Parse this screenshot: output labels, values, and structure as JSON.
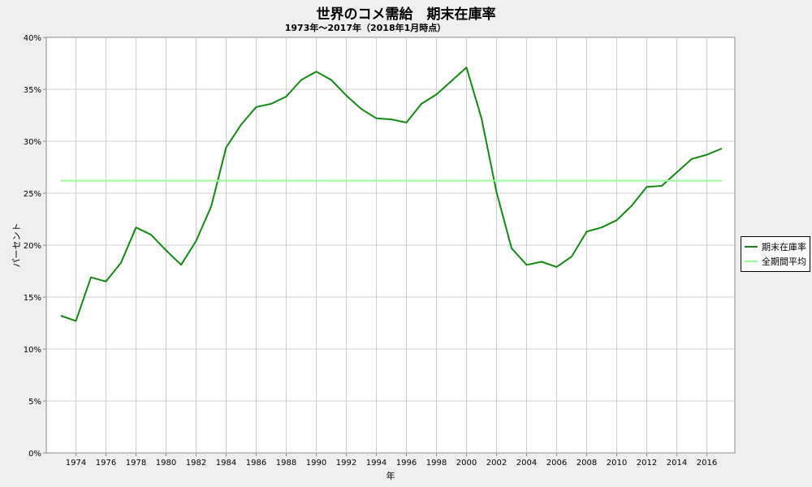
{
  "chart_data": {
    "type": "line",
    "title": "世界のコメ需給　期末在庫率",
    "subtitle": "1973年～2017年（2018年1月時点）",
    "xlabel": "年",
    "ylabel": "パーセント",
    "xlim": [
      1973,
      2017
    ],
    "ylim": [
      0,
      40
    ],
    "y_ticks": [
      "0%",
      "5%",
      "10%",
      "15%",
      "20%",
      "25%",
      "30%",
      "35%",
      "40%"
    ],
    "x_ticks": [
      "1974",
      "1976",
      "1978",
      "1980",
      "1982",
      "1984",
      "1986",
      "1988",
      "1990",
      "1992",
      "1994",
      "1996",
      "1998",
      "2000",
      "2002",
      "2004",
      "2006",
      "2008",
      "2010",
      "2012",
      "2014",
      "2016"
    ],
    "grid": true,
    "legend_position": "right",
    "x": [
      1973,
      1974,
      1975,
      1976,
      1977,
      1978,
      1979,
      1980,
      1981,
      1982,
      1983,
      1984,
      1985,
      1986,
      1987,
      1988,
      1989,
      1990,
      1991,
      1992,
      1993,
      1994,
      1995,
      1996,
      1997,
      1998,
      1999,
      2000,
      2001,
      2002,
      2003,
      2004,
      2005,
      2006,
      2007,
      2008,
      2009,
      2010,
      2011,
      2012,
      2013,
      2014,
      2015,
      2016,
      2017
    ],
    "series": [
      {
        "name": "期末在庫率",
        "color": "#138913",
        "values": [
          13.2,
          12.7,
          16.9,
          16.5,
          18.3,
          21.7,
          21.0,
          19.5,
          18.1,
          20.4,
          23.7,
          29.4,
          31.6,
          33.3,
          33.6,
          34.3,
          35.9,
          36.7,
          35.9,
          34.4,
          33.1,
          32.2,
          32.1,
          31.8,
          33.6,
          34.5,
          35.8,
          37.1,
          32.2,
          25.1,
          19.7,
          18.1,
          18.4,
          17.9,
          18.9,
          21.3,
          21.7,
          22.4,
          23.8,
          25.6,
          25.7,
          27.0,
          28.3,
          28.7,
          29.3
        ]
      },
      {
        "name": "全期間平均",
        "color": "#99ff99",
        "values": [
          26.2,
          26.2,
          26.2,
          26.2,
          26.2,
          26.2,
          26.2,
          26.2,
          26.2,
          26.2,
          26.2,
          26.2,
          26.2,
          26.2,
          26.2,
          26.2,
          26.2,
          26.2,
          26.2,
          26.2,
          26.2,
          26.2,
          26.2,
          26.2,
          26.2,
          26.2,
          26.2,
          26.2,
          26.2,
          26.2,
          26.2,
          26.2,
          26.2,
          26.2,
          26.2,
          26.2,
          26.2,
          26.2,
          26.2,
          26.2,
          26.2,
          26.2,
          26.2,
          26.2,
          26.2
        ]
      }
    ]
  }
}
